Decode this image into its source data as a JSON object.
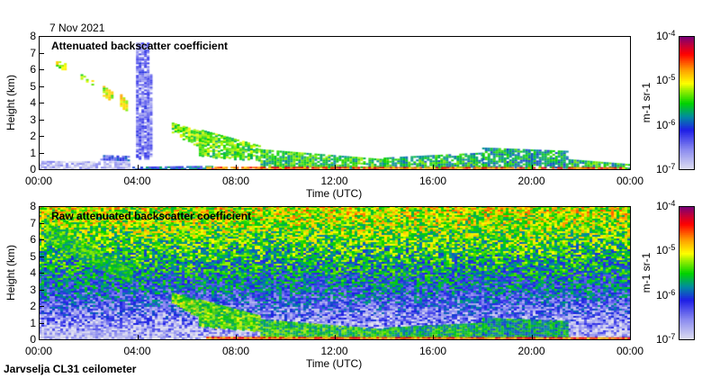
{
  "date_label": "7 Nov 2021",
  "footer_label": "Jarvselja CL31 ceilometer",
  "chart_data": [
    {
      "type": "heatmap",
      "title": "Attenuated backscatter coefficient",
      "xlabel": "Time (UTC)",
      "ylabel": "Height (km)",
      "xlim": [
        0,
        24
      ],
      "ylim": [
        0,
        8
      ],
      "x_ticks": [
        "00:00",
        "04:00",
        "08:00",
        "12:00",
        "16:00",
        "20:00",
        "00:00"
      ],
      "y_ticks": [
        "0",
        "1",
        "2",
        "3",
        "4",
        "5",
        "6",
        "7",
        "8"
      ],
      "colorbar": {
        "label": "m-1 sr-1",
        "label_parts": [
          "m",
          "-1",
          " sr",
          "-1"
        ],
        "ticks": [
          {
            "base": "10",
            "exp": "-4"
          },
          {
            "base": "10",
            "exp": "-5"
          },
          {
            "base": "10",
            "exp": "-6"
          },
          {
            "base": "10",
            "exp": "-7"
          }
        ],
        "range_log10": [
          -7,
          -4
        ]
      },
      "features": [
        [
          0,
          3.7,
          0,
          0.5,
          0,
          0.45,
          -6.8
        ],
        [
          2.5,
          3.6,
          0.55,
          0.85,
          0.55,
          0.8,
          -6.2
        ],
        [
          0.7,
          1.1,
          6.2,
          6.7,
          5.9,
          6.3,
          -5.2
        ],
        [
          1.7,
          2.2,
          5.4,
          5.7,
          5.0,
          5.3,
          -5.2
        ],
        [
          2.6,
          3.0,
          4.4,
          5.0,
          4.1,
          4.6,
          -5.1
        ],
        [
          3.3,
          3.6,
          3.8,
          4.5,
          3.4,
          4.0,
          -5.0
        ],
        [
          3.95,
          4.4,
          0.6,
          7.6,
          0.6,
          7.6,
          -6.4
        ],
        [
          4.4,
          4.6,
          0.8,
          5.7,
          0.8,
          5.7,
          -6.5
        ],
        [
          3.8,
          7.0,
          0,
          0.15,
          0,
          0.2,
          -6.0
        ],
        [
          5.4,
          6.5,
          2.2,
          2.8,
          1.3,
          2.3,
          -5.3
        ],
        [
          6.5,
          9.0,
          0.8,
          2.4,
          0.5,
          1.4,
          -5.4
        ],
        [
          9.0,
          14.0,
          0.1,
          1.2,
          0.1,
          0.6,
          -5.5
        ],
        [
          14.0,
          18.0,
          0.1,
          0.7,
          0.1,
          1.0,
          -5.6
        ],
        [
          18.0,
          21.5,
          0.1,
          1.3,
          0.1,
          1.1,
          -5.7
        ],
        [
          21.5,
          24.0,
          0.05,
          0.6,
          0.05,
          0.3,
          -5.6
        ],
        [
          6.8,
          24.0,
          0,
          0.15,
          0,
          0.12,
          -4.6
        ]
      ]
    },
    {
      "type": "heatmap",
      "title": "Raw attenuated backscatter coefficient",
      "xlabel": "Time (UTC)",
      "ylabel": "Height (km)",
      "xlim": [
        0,
        24
      ],
      "ylim": [
        0,
        8
      ],
      "x_ticks": [
        "00:00",
        "04:00",
        "08:00",
        "12:00",
        "16:00",
        "20:00",
        "00:00"
      ],
      "y_ticks": [
        "0",
        "1",
        "2",
        "3",
        "4",
        "5",
        "6",
        "7",
        "8"
      ],
      "colorbar": {
        "label": "m-1 sr-1",
        "label_parts": [
          "m",
          "-1",
          " sr",
          "-1"
        ],
        "ticks": [
          {
            "base": "10",
            "exp": "-4"
          },
          {
            "base": "10",
            "exp": "-5"
          },
          {
            "base": "10",
            "exp": "-6"
          },
          {
            "base": "10",
            "exp": "-7"
          }
        ],
        "range_log10": [
          -7,
          -4
        ]
      },
      "background_profile_log10": {
        "heights_km": [
          0,
          1,
          2,
          3,
          4,
          5,
          6,
          7,
          8
        ],
        "values": [
          -6.9,
          -6.6,
          -6.3,
          -6.0,
          -5.8,
          -5.6,
          -5.4,
          -5.2,
          -5.1
        ]
      },
      "features": [
        [
          0,
          3.7,
          0,
          0.5,
          0,
          0.45,
          -6.8
        ],
        [
          0.3,
          3.7,
          5.8,
          7.0,
          3.4,
          4.3,
          -5.5
        ],
        [
          5.4,
          6.5,
          2.2,
          2.8,
          1.3,
          2.3,
          -5.3
        ],
        [
          6.5,
          9.0,
          0.8,
          2.4,
          0.5,
          1.4,
          -5.4
        ],
        [
          9.0,
          14.0,
          0.1,
          1.2,
          0.1,
          0.6,
          -5.5
        ],
        [
          14.0,
          18.0,
          0.1,
          0.7,
          0.1,
          1.0,
          -5.6
        ],
        [
          18.0,
          21.5,
          0.1,
          1.3,
          0.1,
          1.1,
          -5.7
        ],
        [
          6.8,
          24.0,
          0,
          0.15,
          0,
          0.12,
          -4.6
        ]
      ]
    }
  ]
}
